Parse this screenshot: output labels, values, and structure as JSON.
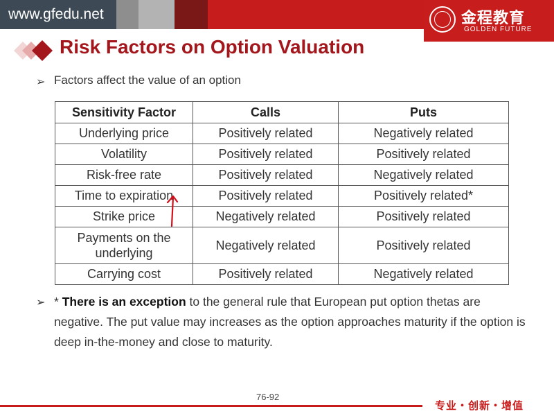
{
  "header": {
    "site": "www.gfedu.net",
    "logo_cn": "金程教育",
    "logo_en": "GOLDEN FUTURE",
    "brand_color": "#c71c1c"
  },
  "title": "Risk Factors on Option Valuation",
  "bullet1": "Factors affect the value of an option",
  "table": {
    "headers": [
      "Sensitivity Factor",
      "Calls",
      "Puts"
    ],
    "rows": [
      [
        "Underlying price",
        "Positively related",
        "Negatively related"
      ],
      [
        "Volatility",
        "Positively related",
        "Positively related"
      ],
      [
        "Risk-free rate",
        "Positively related",
        "Negatively related"
      ],
      [
        "Time to expiration",
        "Positively related",
        "Positively related*"
      ],
      [
        "Strike price",
        "Negatively related",
        "Positively related"
      ],
      [
        "Payments on the underlying",
        "Negatively related",
        "Positively related"
      ],
      [
        "Carrying cost",
        "Positively related",
        "Negatively related"
      ]
    ]
  },
  "bullet2": {
    "prefix": "* ",
    "bold": "There is an exception",
    "rest": " to the general rule that European put option thetas are negative. The put value may increases as the option approaches maturity if the option is deep in-the-money and close to maturity."
  },
  "page_number": "76-92",
  "slogan": "专业・创新・增值",
  "icons": {
    "bullet": "arrowhead-bullet-icon",
    "title_deco": "diamond-icon",
    "annotation": "red-pen-arrow-icon"
  }
}
